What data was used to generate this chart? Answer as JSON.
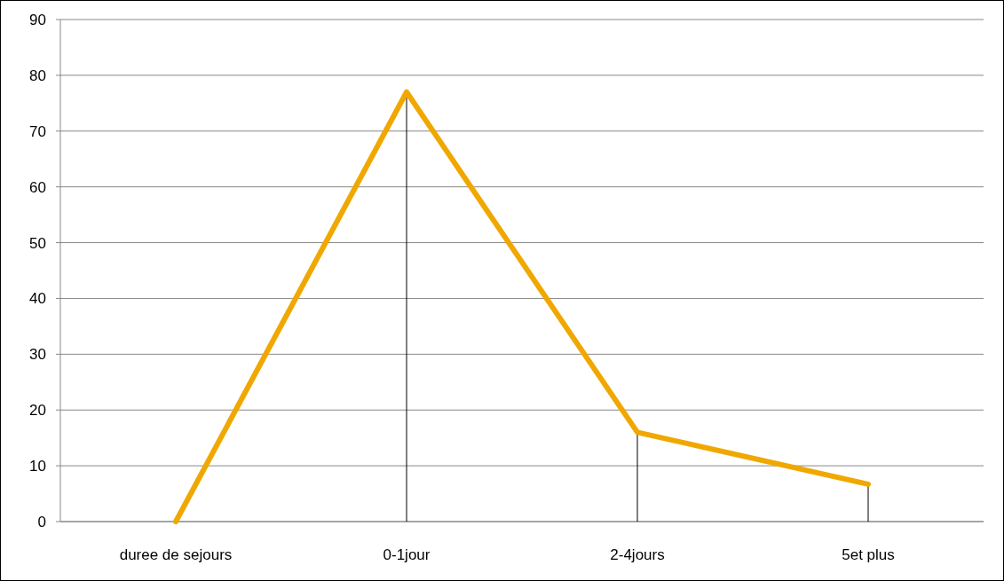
{
  "chart_data": {
    "type": "line",
    "categories": [
      "duree de sejours",
      "0-1jour",
      "2-4jours",
      "5et plus"
    ],
    "series": [
      {
        "color": "#f0a800",
        "values": [
          0,
          77,
          16,
          6.7
        ],
        "errors": [
          null,
          [
            0,
            77
          ],
          [
            0,
            16
          ],
          [
            0,
            6.7
          ]
        ]
      }
    ],
    "ylim": [
      0,
      90
    ],
    "yticks": [
      0,
      10,
      20,
      30,
      40,
      50,
      60,
      70,
      80,
      90
    ],
    "grid": "y",
    "marker": "none",
    "line_style": "solid"
  }
}
